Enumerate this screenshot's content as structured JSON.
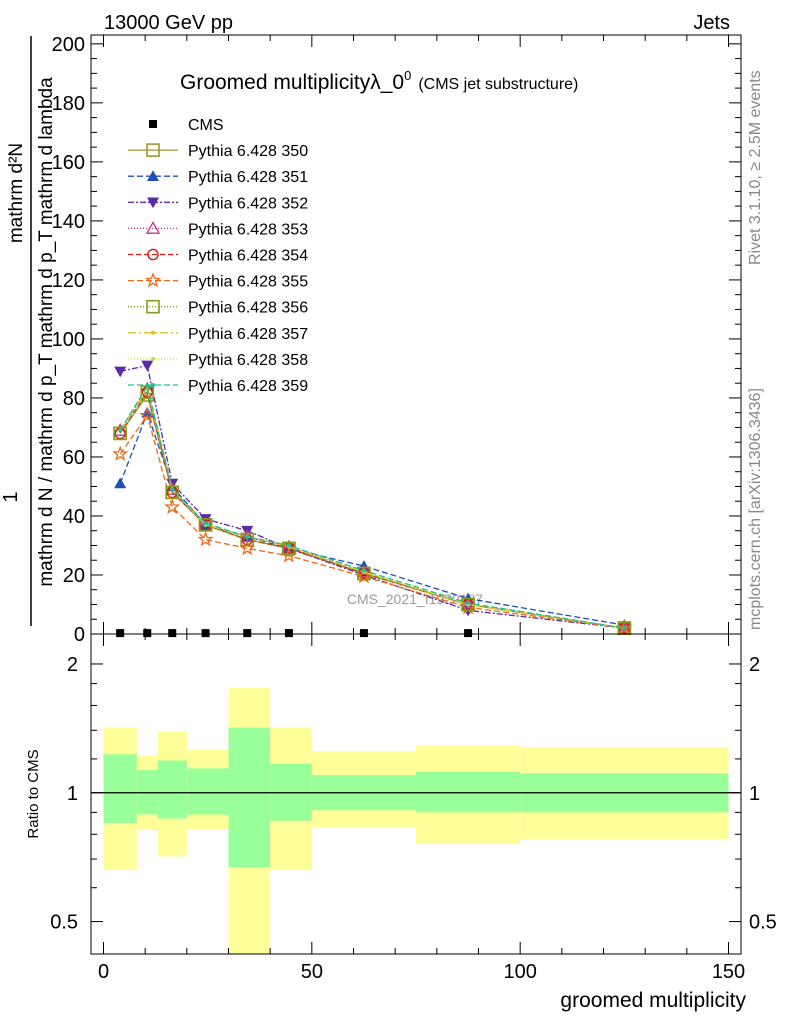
{
  "header": {
    "left": "13000 GeV pp",
    "right": "Jets",
    "rivet": "Rivet 3.1.10, ≥ 2.5M events",
    "mcplots": "mcplots.cern.ch [arXiv:1306.3436]"
  },
  "chart_data": [
    {
      "type": "line",
      "title": "Groomed multiplicityλ_0",
      "title_sup": "0",
      "title_suffix": "(CMS jet substructure)",
      "ylabel_numerator": "1",
      "ylabel_denominator": "mathrm d N / mathrm d p_T mathrm d p_T mathrm d lambda",
      "ylabel_top": "mathrm d²N",
      "watermark": "CMS_2021_I1920187",
      "xlim": [
        -3,
        153
      ],
      "ylim": [
        0,
        203
      ],
      "yticks": [
        0,
        20,
        40,
        60,
        80,
        100,
        120,
        140,
        160,
        180,
        200
      ],
      "x": [
        4,
        10.5,
        16.5,
        24.5,
        34.5,
        44.5,
        62.5,
        87.5,
        125
      ],
      "series": [
        {
          "name": "CMS",
          "color": "#000000",
          "marker": "square-filled",
          "dash": "none",
          "values": [
            0.3,
            0.3,
            0.3,
            0.3,
            0.3,
            0.3,
            0.3,
            0.3,
            null
          ]
        },
        {
          "name": "Pythia 6.428 350",
          "color": "#9a9a2a",
          "marker": "square-open",
          "dash": "solid",
          "values": [
            68,
            81,
            48,
            37,
            32,
            29,
            20.5,
            10,
            2
          ]
        },
        {
          "name": "Pythia 6.428 351",
          "color": "#1b50b8",
          "marker": "triangle-up",
          "dash": "6,3",
          "values": [
            51,
            75,
            50,
            37,
            33,
            29,
            23,
            12,
            3
          ]
        },
        {
          "name": "Pythia 6.428 352",
          "color": "#5b2aa8",
          "marker": "triangle-down",
          "dash": "6,2,2,2",
          "values": [
            89,
            91,
            51,
            39,
            35,
            29,
            20,
            8,
            2
          ]
        },
        {
          "name": "Pythia 6.428 353",
          "color": "#c6348c",
          "marker": "triangle-open",
          "dash": "1,2",
          "values": [
            69,
            83,
            49,
            37,
            33,
            29.5,
            21,
            10,
            2
          ]
        },
        {
          "name": "Pythia 6.428 354",
          "color": "#d41c1c",
          "marker": "circle-open",
          "dash": "5,3",
          "values": [
            68,
            82,
            48,
            37,
            32,
            29,
            20.5,
            10,
            2
          ]
        },
        {
          "name": "Pythia 6.428 355",
          "color": "#ee6a1a",
          "marker": "star-open",
          "dash": "6,3",
          "values": [
            61,
            74,
            43,
            32,
            29,
            26.5,
            19.5,
            9,
            2
          ]
        },
        {
          "name": "Pythia 6.428 356",
          "color": "#8a9a1a",
          "marker": "square-open",
          "dash": "1,2",
          "values": [
            68,
            82,
            48,
            37,
            32,
            29,
            20.5,
            10,
            2
          ]
        },
        {
          "name": "Pythia 6.428 357",
          "color": "#dcc21a",
          "marker": "dot",
          "dash": "8,3,2,3",
          "values": [
            69,
            83,
            49,
            37,
            33,
            29.5,
            21,
            10,
            2
          ]
        },
        {
          "name": "Pythia 6.428 358",
          "color": "#c8dc3a",
          "marker": "dot",
          "dash": "1,2",
          "values": [
            69,
            84,
            49,
            37,
            33,
            30,
            21,
            10,
            2
          ]
        },
        {
          "name": "Pythia 6.428 359",
          "color": "#1fc39a",
          "marker": "dot",
          "dash": "6,3",
          "values": [
            69,
            84,
            49,
            37.5,
            33,
            30,
            21.5,
            10.5,
            2
          ]
        }
      ]
    },
    {
      "type": "area",
      "ylabel": "Ratio to CMS",
      "xlabel": "groomed multiplicity",
      "xlim": [
        -3,
        153
      ],
      "xticks": [
        0,
        50,
        100,
        150
      ],
      "ylim": [
        0.42,
        2.35
      ],
      "yscale": "log",
      "yticks": [
        0.5,
        1,
        2
      ],
      "reference": 1,
      "bins": [
        {
          "lo": 0,
          "hi": 8,
          "inner": [
            0.85,
            1.23
          ],
          "outer": [
            0.66,
            1.42
          ]
        },
        {
          "lo": 8,
          "hi": 13,
          "inner": [
            0.89,
            1.13
          ],
          "outer": [
            0.82,
            1.22
          ]
        },
        {
          "lo": 13,
          "hi": 20,
          "inner": [
            0.87,
            1.19
          ],
          "outer": [
            0.71,
            1.39
          ]
        },
        {
          "lo": 20,
          "hi": 30,
          "inner": [
            0.89,
            1.14
          ],
          "outer": [
            0.82,
            1.26
          ]
        },
        {
          "lo": 30,
          "hi": 40,
          "inner": [
            0.67,
            1.42
          ],
          "outer": [
            0.4,
            1.76
          ]
        },
        {
          "lo": 40,
          "hi": 50,
          "inner": [
            0.86,
            1.17
          ],
          "outer": [
            0.66,
            1.42
          ]
        },
        {
          "lo": 50,
          "hi": 75,
          "inner": [
            0.91,
            1.1
          ],
          "outer": [
            0.83,
            1.25
          ]
        },
        {
          "lo": 75,
          "hi": 100,
          "inner": [
            0.9,
            1.12
          ],
          "outer": [
            0.76,
            1.29
          ]
        },
        {
          "lo": 100,
          "hi": 150,
          "inner": [
            0.9,
            1.11
          ],
          "outer": [
            0.78,
            1.28
          ]
        }
      ],
      "colors": {
        "inner": "#99ff99",
        "outer": "#ffff99"
      }
    }
  ]
}
